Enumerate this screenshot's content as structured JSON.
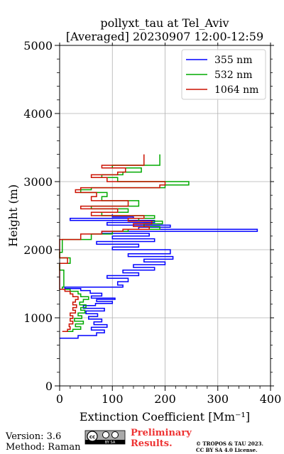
{
  "chart_data": {
    "type": "line",
    "title": "pollyxt_tau at Tel_Aviv",
    "subtitle": "[Averaged] 20230907 12:00-12:59",
    "xlabel": "Extinction Coefficient [Mm⁻¹]",
    "ylabel": "Height (m)",
    "xlim": [
      0,
      400
    ],
    "ylim": [
      0,
      5000
    ],
    "x_ticks": [
      "0",
      "100",
      "200",
      "300",
      "400"
    ],
    "y_ticks": [
      "0",
      "1000",
      "2000",
      "3000",
      "4000",
      "5000"
    ],
    "grid": true,
    "legend_position": "top-right",
    "series": [
      {
        "name": "355 nm",
        "color": "#0000ff",
        "points": [
          [
            0,
            700
          ],
          [
            35,
            740
          ],
          [
            70,
            780
          ],
          [
            85,
            820
          ],
          [
            60,
            860
          ],
          [
            90,
            900
          ],
          [
            65,
            940
          ],
          [
            80,
            980
          ],
          [
            55,
            1020
          ],
          [
            72,
            1060
          ],
          [
            50,
            1100
          ],
          [
            85,
            1140
          ],
          [
            45,
            1180
          ],
          [
            68,
            1210
          ],
          [
            100,
            1240
          ],
          [
            70,
            1270
          ],
          [
            105,
            1290
          ],
          [
            60,
            1320
          ],
          [
            80,
            1360
          ],
          [
            58,
            1400
          ],
          [
            40,
            1430
          ],
          [
            10,
            1450
          ],
          [
            120,
            1480
          ],
          [
            110,
            1530
          ],
          [
            130,
            1580
          ],
          [
            90,
            1620
          ],
          [
            150,
            1660
          ],
          [
            120,
            1700
          ],
          [
            180,
            1740
          ],
          [
            140,
            1780
          ],
          [
            200,
            1820
          ],
          [
            160,
            1860
          ],
          [
            215,
            1900
          ],
          [
            130,
            1940
          ],
          [
            210,
            2000
          ],
          [
            100,
            2040
          ],
          [
            150,
            2080
          ],
          [
            70,
            2120
          ],
          [
            180,
            2160
          ],
          [
            100,
            2200
          ],
          [
            170,
            2240
          ],
          [
            80,
            2270
          ],
          [
            375,
            2300
          ],
          [
            150,
            2330
          ],
          [
            210,
            2360
          ],
          [
            90,
            2400
          ],
          [
            180,
            2430
          ],
          [
            20,
            2460
          ],
          [
            140,
            2480
          ],
          [
            100,
            2520
          ]
        ]
      },
      {
        "name": "532 nm",
        "color": "#00aa00",
        "points": [
          [
            10,
            800
          ],
          [
            25,
            830
          ],
          [
            40,
            870
          ],
          [
            30,
            910
          ],
          [
            45,
            950
          ],
          [
            28,
            990
          ],
          [
            42,
            1030
          ],
          [
            35,
            1070
          ],
          [
            48,
            1110
          ],
          [
            40,
            1150
          ],
          [
            50,
            1190
          ],
          [
            38,
            1230
          ],
          [
            45,
            1270
          ],
          [
            55,
            1310
          ],
          [
            40,
            1350
          ],
          [
            35,
            1390
          ],
          [
            20,
            1420
          ],
          [
            5,
            1450
          ],
          [
            8,
            1700
          ],
          [
            0,
            1800
          ],
          [
            20,
            1880
          ],
          [
            0,
            1960
          ],
          [
            5,
            2150
          ],
          [
            60,
            2230
          ],
          [
            100,
            2270
          ],
          [
            130,
            2300
          ],
          [
            190,
            2340
          ],
          [
            160,
            2380
          ],
          [
            195,
            2420
          ],
          [
            150,
            2460
          ],
          [
            180,
            2500
          ],
          [
            80,
            2550
          ],
          [
            130,
            2600
          ],
          [
            60,
            2640
          ],
          [
            150,
            2720
          ],
          [
            80,
            2780
          ],
          [
            90,
            2840
          ],
          [
            40,
            2880
          ],
          [
            60,
            2910
          ],
          [
            200,
            2950
          ],
          [
            245,
            3000
          ],
          [
            110,
            3060
          ],
          [
            80,
            3100
          ],
          [
            120,
            3140
          ],
          [
            155,
            3200
          ],
          [
            100,
            3240
          ],
          [
            190,
            3400
          ]
        ]
      },
      {
        "name": "1064 nm",
        "color": "#cc1100",
        "points": [
          [
            5,
            800
          ],
          [
            15,
            830
          ],
          [
            20,
            870
          ],
          [
            18,
            910
          ],
          [
            25,
            950
          ],
          [
            20,
            990
          ],
          [
            25,
            1030
          ],
          [
            20,
            1070
          ],
          [
            30,
            1110
          ],
          [
            25,
            1150
          ],
          [
            32,
            1190
          ],
          [
            25,
            1230
          ],
          [
            30,
            1270
          ],
          [
            35,
            1310
          ],
          [
            25,
            1350
          ],
          [
            20,
            1390
          ],
          [
            10,
            1420
          ],
          [
            0,
            1450
          ],
          [
            0,
            1700
          ],
          [
            0,
            1800
          ],
          [
            15,
            1880
          ],
          [
            0,
            1960
          ],
          [
            0,
            2150
          ],
          [
            40,
            2230
          ],
          [
            80,
            2270
          ],
          [
            120,
            2300
          ],
          [
            170,
            2340
          ],
          [
            140,
            2380
          ],
          [
            175,
            2420
          ],
          [
            130,
            2460
          ],
          [
            160,
            2500
          ],
          [
            60,
            2550
          ],
          [
            110,
            2600
          ],
          [
            40,
            2640
          ],
          [
            130,
            2720
          ],
          [
            60,
            2780
          ],
          [
            70,
            2840
          ],
          [
            30,
            2880
          ],
          [
            40,
            2910
          ],
          [
            190,
            2950
          ],
          [
            200,
            3000
          ],
          [
            90,
            3060
          ],
          [
            60,
            3100
          ],
          [
            110,
            3140
          ],
          [
            125,
            3200
          ],
          [
            80,
            3240
          ],
          [
            160,
            3400
          ]
        ]
      }
    ]
  },
  "footer": {
    "version": "Version: 3.6",
    "method": "Method: Raman",
    "license_badge_text": "BY SA",
    "preliminary_line1": "Preliminary",
    "preliminary_line2": "Results.",
    "copyright_line1": "© TROPOS & TAU 2023.",
    "copyright_line2": "CC BY SA 4.0 License.",
    "preliminary_color": "#ee3333"
  }
}
